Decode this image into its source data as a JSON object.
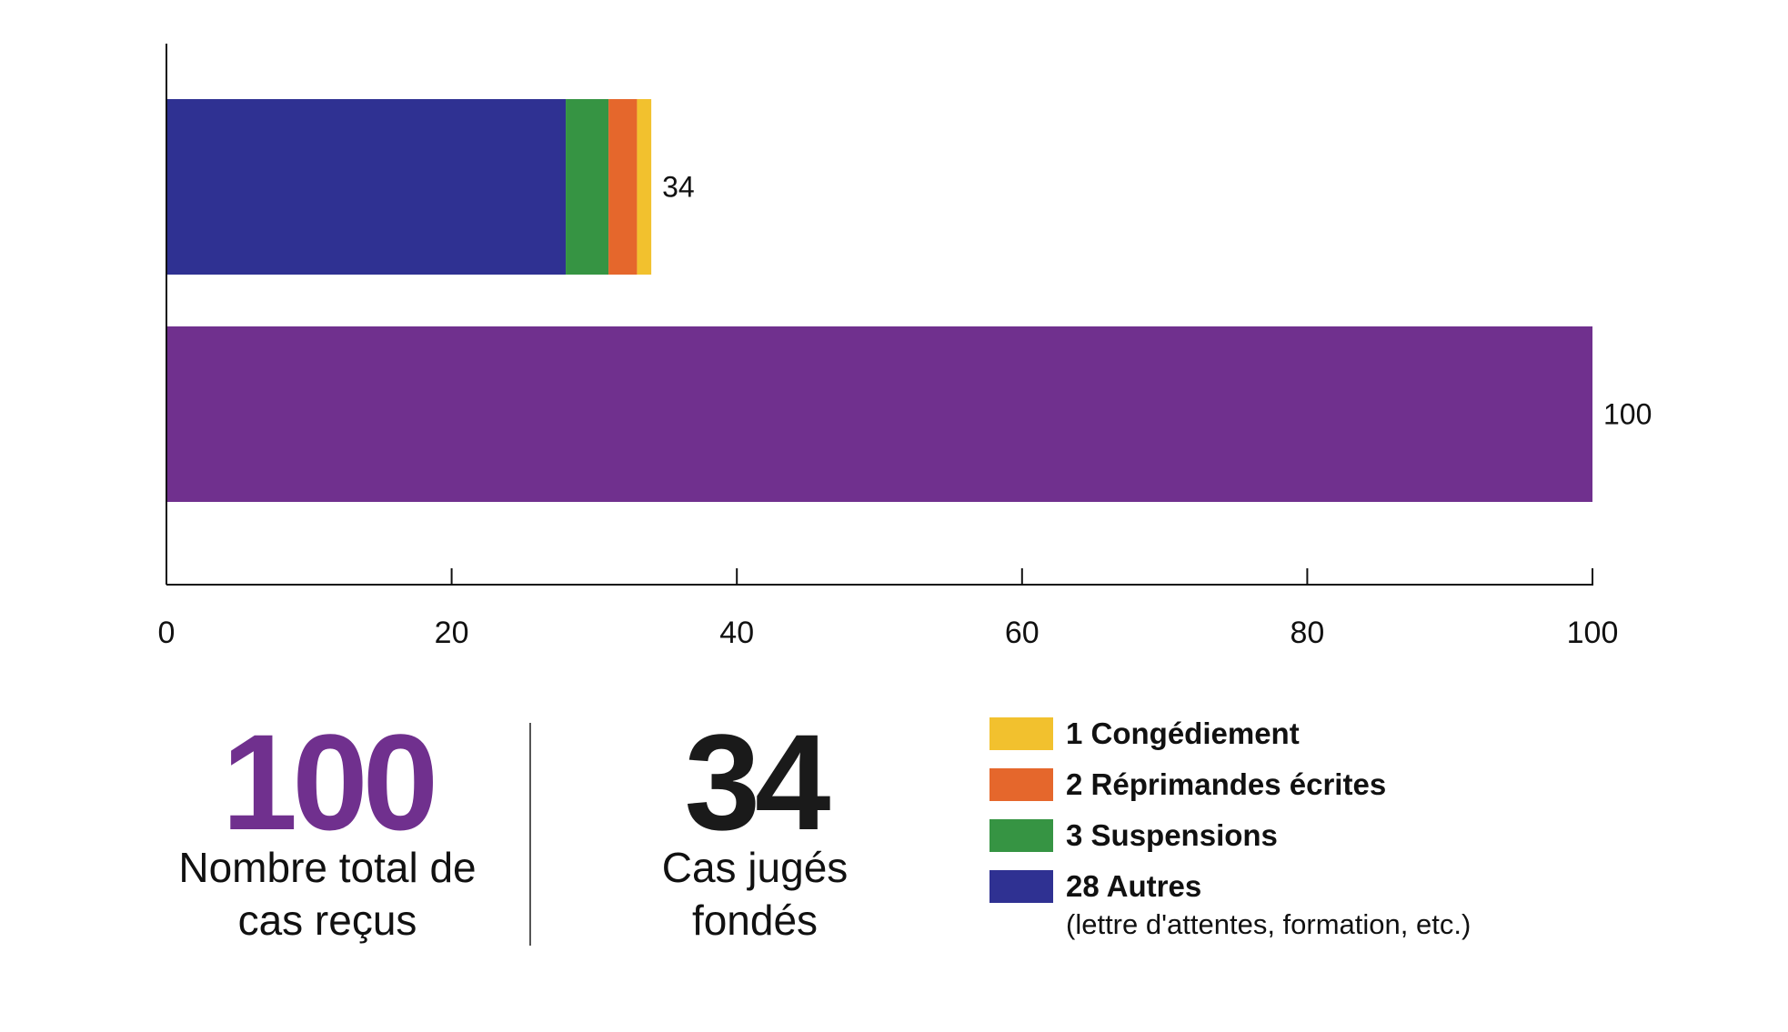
{
  "chart_data": {
    "type": "bar",
    "orientation": "horizontal",
    "stacked": true,
    "xlim": [
      0,
      100
    ],
    "x_ticks": [
      0,
      20,
      40,
      60,
      80,
      100
    ],
    "grid": false,
    "legend_position": "bottom-right",
    "bars": [
      {
        "total": 34,
        "total_label": "34",
        "segments": [
          {
            "series": "Autres",
            "value": 28,
            "color": "#2f3192"
          },
          {
            "series": "Suspensions",
            "value": 3,
            "color": "#369443"
          },
          {
            "series": "Réprimandes écrites",
            "value": 2,
            "color": "#e5672c"
          },
          {
            "series": "Congédiement",
            "value": 1,
            "color": "#f2c12e"
          }
        ]
      },
      {
        "total": 100,
        "total_label": "100",
        "segments": [
          {
            "series": "",
            "value": 100,
            "color": "#70308e"
          }
        ]
      }
    ]
  },
  "stats": {
    "total": {
      "number": "100",
      "caption_line1": "Nombre total de",
      "caption_line2": "cas reçus",
      "color": "#70308e"
    },
    "founded": {
      "number": "34",
      "caption_line1": "Cas jugés",
      "caption_line2": "fondés",
      "color": "#1a1a1a"
    }
  },
  "legend": {
    "items": [
      {
        "label": "1 Congédiement",
        "color": "#f2c12e"
      },
      {
        "label": "2 Réprimandes écrites",
        "color": "#e5672c"
      },
      {
        "label": "3 Suspensions",
        "color": "#369443"
      },
      {
        "label": "28 Autres",
        "sublabel": "(lettre d'attentes, formation, etc.)",
        "color": "#2f3192"
      }
    ]
  }
}
